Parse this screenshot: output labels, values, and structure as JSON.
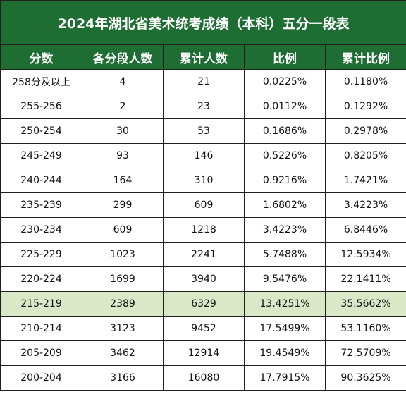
{
  "title": "2024年湖北省美术统考成绩（本科）五分一段表",
  "columns": [
    "分数",
    "各分段人数",
    "累计人数",
    "比例",
    "累计比例"
  ],
  "highlight_row_index": 9,
  "colors": {
    "header_bg": "#1e6e33",
    "header_text": "#ffffff",
    "highlight_bg": "#dbe8c8",
    "border": "#1f1f1f"
  },
  "rows": [
    [
      "258分及以上",
      "4",
      "21",
      "0.0225%",
      "0.1180%"
    ],
    [
      "255-256",
      "2",
      "23",
      "0.0112%",
      "0.1292%"
    ],
    [
      "250-254",
      "30",
      "53",
      "0.1686%",
      "0.2978%"
    ],
    [
      "245-249",
      "93",
      "146",
      "0.5226%",
      "0.8205%"
    ],
    [
      "240-244",
      "164",
      "310",
      "0.9216%",
      "1.7421%"
    ],
    [
      "235-239",
      "299",
      "609",
      "1.6802%",
      "3.4223%"
    ],
    [
      "230-234",
      "609",
      "1218",
      "3.4223%",
      "6.8446%"
    ],
    [
      "225-229",
      "1023",
      "2241",
      "5.7488%",
      "12.5934%"
    ],
    [
      "220-224",
      "1699",
      "3940",
      "9.5476%",
      "22.1411%"
    ],
    [
      "215-219",
      "2389",
      "6329",
      "13.4251%",
      "35.5662%"
    ],
    [
      "210-214",
      "3123",
      "9452",
      "17.5499%",
      "53.1160%"
    ],
    [
      "205-209",
      "3462",
      "12914",
      "19.4549%",
      "72.5709%"
    ],
    [
      "200-204",
      "3166",
      "16080",
      "17.7915%",
      "90.3625%"
    ]
  ]
}
